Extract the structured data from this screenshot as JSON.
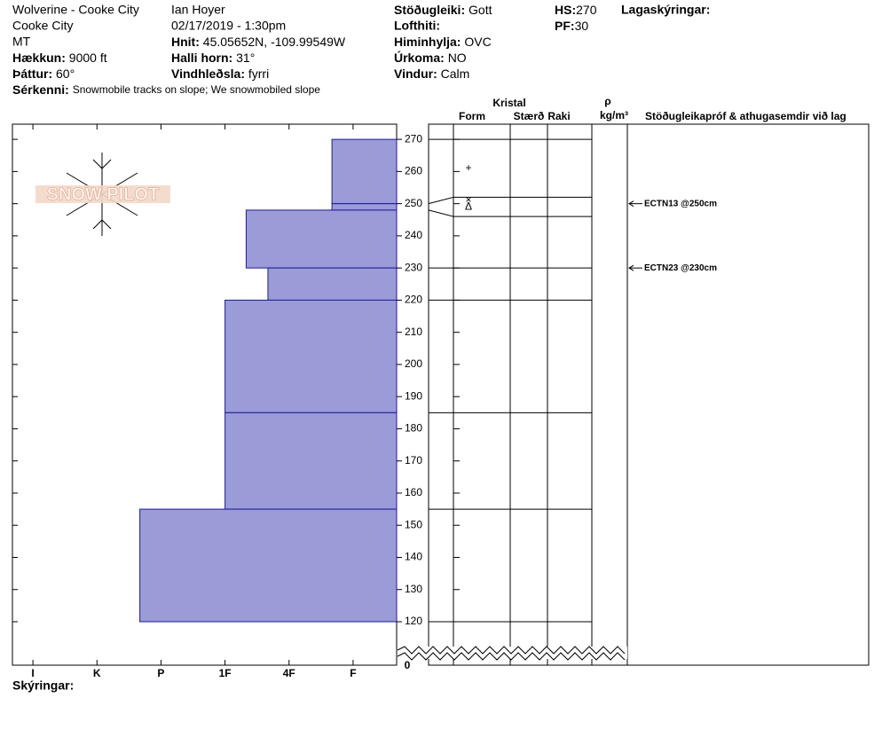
{
  "header": {
    "site": "Wolverine - Cooke City",
    "location": "Cooke City",
    "state": "MT",
    "elevation": {
      "label": "Hækkun:",
      "value": "9000 ft"
    },
    "aspect": {
      "label": "Þáttur:",
      "value": "60°"
    },
    "features": {
      "label": "Sérkenni:",
      "value": "Snowmobile tracks on slope; We snowmobiled slope"
    },
    "observer": "Ian Hoyer",
    "datetime": "02/17/2019 - 1:30pm",
    "coords": {
      "label": "Hnit:",
      "value": "45.05652N, -109.99549W"
    },
    "slope": {
      "label": "Halli horn:",
      "value": "31°"
    },
    "wind_loading": {
      "label": "Vindhleðsla:",
      "value": "fyrri"
    },
    "stability": {
      "label": "Stöðugleiki:",
      "value": "Gott"
    },
    "air_temp": {
      "label": "Lofthiti:"
    },
    "sky": {
      "label": "Himinhylja:",
      "value": "OVC"
    },
    "precip": {
      "label": "Úrkoma:",
      "value": "NO"
    },
    "wind": {
      "label": "Vindur:",
      "value": "Calm"
    },
    "hs": {
      "label": "HS:",
      "value": 270
    },
    "pf": {
      "label": "PF:",
      "value": 30
    },
    "layer_notes": {
      "label": "Lagaskýringar:"
    }
  },
  "chart_data": {
    "type": "snow-profile",
    "logo": "SNOW PILOT",
    "color": "#9b9bd7",
    "layers": [
      {
        "top": 270,
        "bottom": 250,
        "hardness": 1.33
      },
      {
        "top": 250,
        "bottom": 248,
        "hardness": 1.33
      },
      {
        "top": 248,
        "bottom": 230,
        "hardness": 2.67
      },
      {
        "top": 230,
        "bottom": 220,
        "hardness": 2.33
      },
      {
        "top": 220,
        "bottom": 185,
        "hardness": 3
      },
      {
        "top": 185,
        "bottom": 155,
        "hardness": 3
      },
      {
        "top": 155,
        "bottom": 120,
        "hardness": 4.33
      }
    ],
    "xlim": [
      6.32,
      0.32
    ],
    "xticks": [
      {
        "value": 6,
        "label": "I"
      },
      {
        "value": 5,
        "label": "K"
      },
      {
        "value": 4,
        "label": "P"
      },
      {
        "value": 3,
        "label": "1F"
      },
      {
        "value": 2,
        "label": "4F"
      },
      {
        "value": 1,
        "label": "F"
      }
    ],
    "ylim": [
      120,
      275
    ],
    "yticks": [
      120,
      130,
      140,
      150,
      160,
      170,
      180,
      190,
      200,
      210,
      220,
      230,
      240,
      250,
      260,
      270
    ],
    "y_break_tick": 0,
    "grain_boundaries": [
      270,
      252,
      246,
      230,
      220,
      185,
      155,
      120
    ],
    "grain_forms": [
      {
        "depth": 261,
        "symbol": "+"
      },
      {
        "depth": 251,
        "symbol": "×"
      },
      {
        "depth": 249,
        "symbol": "Δ"
      }
    ],
    "tests": [
      {
        "depth": 250,
        "label": "ECTN13 @250cm"
      },
      {
        "depth": 230,
        "label": "ECTN23 @230cm"
      }
    ],
    "column_headers": {
      "crystal": "Kristal",
      "form": "Form",
      "size": "Stærð",
      "moisture": "Raki",
      "rho": "ρ",
      "density_unit": "kg/m³",
      "tests": "Stöðugleikapróf & athugasemdir við lag"
    },
    "footer": "Skýringar:"
  }
}
